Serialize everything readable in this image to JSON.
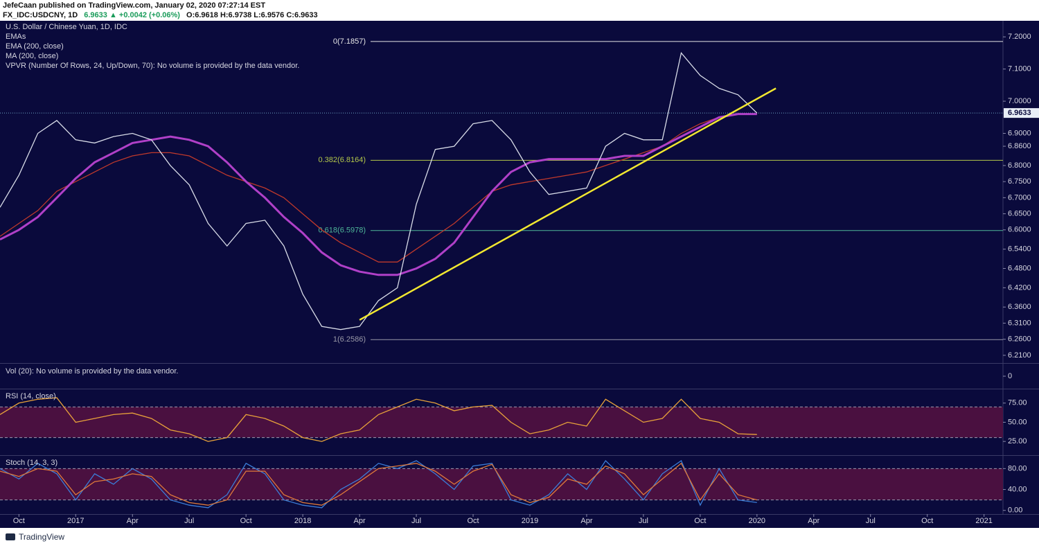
{
  "header": {
    "line1": "JefeCaan published on TradingView.com, January 02, 2020 07:27:14 EST",
    "symbol": "FX_IDC:USDCNY, 1D",
    "last": "6.9633 ▲ +0.0042 (+0.06%)",
    "ohlc": "O:6.9618 H:6.9738 L:6.9576 C:6.9633"
  },
  "footer": {
    "brand": "TradingView"
  },
  "chart_data": [
    {
      "type": "line",
      "title": "U.S. Dollar / Chinese Yuan, 1D, IDC",
      "annotations": [
        "EMAs",
        "VPVR (Number Of Rows, 24, Up/Down, 70): No volume is provided by the data vendor."
      ],
      "x": [
        "2016-09",
        "2016-10",
        "2016-11",
        "2016-12",
        "2017-01",
        "2017-02",
        "2017-03",
        "2017-04",
        "2017-05",
        "2017-06",
        "2017-07",
        "2017-08",
        "2017-09",
        "2017-10",
        "2017-11",
        "2017-12",
        "2018-01",
        "2018-02",
        "2018-03",
        "2018-04",
        "2018-05",
        "2018-06",
        "2018-07",
        "2018-08",
        "2018-09",
        "2018-10",
        "2018-11",
        "2018-12",
        "2019-01",
        "2019-02",
        "2019-03",
        "2019-04",
        "2019-05",
        "2019-06",
        "2019-07",
        "2019-08",
        "2019-09",
        "2019-10",
        "2019-11",
        "2019-12",
        "2020-01"
      ],
      "values": [
        6.67,
        6.77,
        6.9,
        6.94,
        6.88,
        6.87,
        6.89,
        6.9,
        6.88,
        6.8,
        6.74,
        6.62,
        6.55,
        6.62,
        6.63,
        6.55,
        6.4,
        6.3,
        6.29,
        6.3,
        6.38,
        6.42,
        6.68,
        6.85,
        6.86,
        6.93,
        6.94,
        6.88,
        6.78,
        6.71,
        6.72,
        6.73,
        6.86,
        6.9,
        6.88,
        6.88,
        7.15,
        7.08,
        7.04,
        7.02,
        6.9633
      ],
      "color": "#d8dce8",
      "series": [
        {
          "name": "EMA (200, close)",
          "color": "#c0392b",
          "values": [
            6.58,
            6.62,
            6.66,
            6.72,
            6.75,
            6.78,
            6.81,
            6.83,
            6.84,
            6.84,
            6.83,
            6.8,
            6.77,
            6.75,
            6.73,
            6.7,
            6.65,
            6.6,
            6.56,
            6.53,
            6.5,
            6.5,
            6.54,
            6.58,
            6.62,
            6.67,
            6.72,
            6.74,
            6.75,
            6.76,
            6.77,
            6.78,
            6.8,
            6.82,
            6.84,
            6.86,
            6.9,
            6.93,
            6.95,
            6.96,
            6.96
          ]
        },
        {
          "name": "MA (200, close)",
          "color": "#b040c8",
          "values": [
            6.57,
            6.6,
            6.64,
            6.7,
            6.76,
            6.81,
            6.84,
            6.87,
            6.88,
            6.89,
            6.88,
            6.86,
            6.81,
            6.75,
            6.7,
            6.64,
            6.59,
            6.53,
            6.49,
            6.47,
            6.46,
            6.46,
            6.48,
            6.51,
            6.56,
            6.64,
            6.72,
            6.78,
            6.81,
            6.82,
            6.82,
            6.82,
            6.82,
            6.83,
            6.83,
            6.86,
            6.89,
            6.92,
            6.95,
            6.96,
            6.96
          ]
        }
      ],
      "xlim": [
        "2016-09",
        "2021-02"
      ],
      "xticks": [
        {
          "value": "2016-10",
          "label": "Oct"
        },
        {
          "value": "2017-01",
          "label": "2017"
        },
        {
          "value": "2017-04",
          "label": "Apr"
        },
        {
          "value": "2017-07",
          "label": "Jul"
        },
        {
          "value": "2017-10",
          "label": "Oct"
        },
        {
          "value": "2018-01",
          "label": "2018"
        },
        {
          "value": "2018-04",
          "label": "Apr"
        },
        {
          "value": "2018-07",
          "label": "Jul"
        },
        {
          "value": "2018-10",
          "label": "Oct"
        },
        {
          "value": "2019-01",
          "label": "2019"
        },
        {
          "value": "2019-04",
          "label": "Apr"
        },
        {
          "value": "2019-07",
          "label": "Jul"
        },
        {
          "value": "2019-10",
          "label": "Oct"
        },
        {
          "value": "2020-01",
          "label": "2020"
        },
        {
          "value": "2020-04",
          "label": "Apr"
        },
        {
          "value": "2020-07",
          "label": "Jul"
        },
        {
          "value": "2020-10",
          "label": "Oct"
        },
        {
          "value": "2021-01",
          "label": "2021"
        }
      ],
      "ylim": [
        6.186,
        7.25
      ],
      "yticks": [
        {
          "value": 7.2,
          "label": "7.2000"
        },
        {
          "value": 7.1,
          "label": "7.1000"
        },
        {
          "value": 7.0,
          "label": "7.0000"
        },
        {
          "value": 6.9,
          "label": "6.9000"
        },
        {
          "value": 6.86,
          "label": "6.8600"
        },
        {
          "value": 6.8,
          "label": "6.8000"
        },
        {
          "value": 6.75,
          "label": "6.7500"
        },
        {
          "value": 6.7,
          "label": "6.7000"
        },
        {
          "value": 6.65,
          "label": "6.6500"
        },
        {
          "value": 6.6,
          "label": "6.6000"
        },
        {
          "value": 6.54,
          "label": "6.5400"
        },
        {
          "value": 6.48,
          "label": "6.4800"
        },
        {
          "value": 6.42,
          "label": "6.4200"
        },
        {
          "value": 6.36,
          "label": "6.3600"
        },
        {
          "value": 6.31,
          "label": "6.3100"
        },
        {
          "value": 6.26,
          "label": "6.2600"
        },
        {
          "value": 6.21,
          "label": "6.2100"
        }
      ],
      "fib_levels": [
        {
          "value": 7.1857,
          "label": "0(7.1857)",
          "color": "#e6e6e6"
        },
        {
          "value": 6.8164,
          "label": "0.382(6.8164)",
          "color": "#b5c94a"
        },
        {
          "value": 6.5978,
          "label": "0.618(6.5978)",
          "color": "#4fb89a"
        },
        {
          "value": 6.2586,
          "label": "1(6.2586)",
          "color": "#9a9aa8"
        }
      ],
      "trendline": {
        "x": [
          "2018-04",
          "2020-02"
        ],
        "values": [
          6.32,
          7.04
        ],
        "color": "#f2e830"
      },
      "last_price": 6.9633
    },
    {
      "type": "volume",
      "title": "Vol (20): No volume is provided by the data vendor.",
      "yticks": [
        0
      ]
    },
    {
      "type": "line",
      "title": "RSI (14, close)",
      "color": "#e8a23a",
      "values": [
        60,
        75,
        80,
        82,
        50,
        55,
        60,
        62,
        55,
        40,
        35,
        25,
        30,
        60,
        55,
        45,
        30,
        25,
        35,
        40,
        60,
        70,
        80,
        75,
        65,
        70,
        72,
        50,
        35,
        40,
        50,
        45,
        80,
        65,
        50,
        55,
        80,
        55,
        50,
        35,
        34
      ],
      "ylim": [
        8,
        92
      ],
      "yticks": [
        {
          "value": 75,
          "label": "75.00"
        },
        {
          "value": 50,
          "label": "50.00"
        },
        {
          "value": 25,
          "label": "25.00"
        }
      ],
      "bands": [
        30,
        70
      ],
      "band_color": "#4a1040"
    },
    {
      "type": "line",
      "title": "Stoch (14, 3, 3)",
      "series": [
        {
          "color": "#3b7dd8",
          "values": [
            80,
            60,
            90,
            70,
            20,
            70,
            50,
            80,
            60,
            20,
            10,
            5,
            30,
            90,
            70,
            20,
            10,
            5,
            40,
            60,
            90,
            80,
            95,
            70,
            40,
            85,
            90,
            20,
            10,
            30,
            70,
            40,
            95,
            60,
            20,
            70,
            95,
            10,
            80,
            20,
            15
          ]
        },
        {
          "color": "#e07a3a",
          "values": [
            75,
            65,
            80,
            75,
            30,
            55,
            60,
            70,
            65,
            30,
            15,
            10,
            20,
            75,
            75,
            30,
            15,
            10,
            30,
            55,
            80,
            85,
            90,
            75,
            50,
            75,
            88,
            30,
            15,
            25,
            60,
            50,
            85,
            70,
            30,
            60,
            90,
            20,
            70,
            30,
            20
          ]
        }
      ],
      "ylim": [
        -7,
        103
      ],
      "yticks": [
        {
          "value": 80,
          "label": "80.00"
        },
        {
          "value": 40,
          "label": "40.00"
        },
        {
          "value": 0,
          "label": "0.00"
        }
      ],
      "bands": [
        20,
        80
      ],
      "band_color": "#4a1040"
    }
  ]
}
